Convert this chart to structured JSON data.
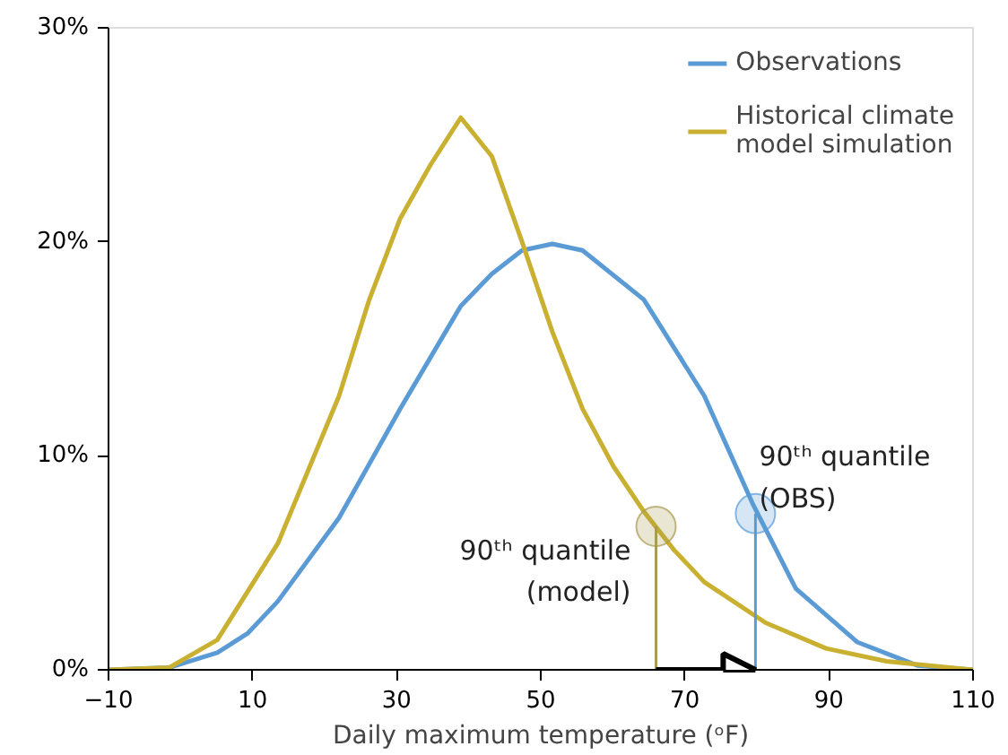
{
  "chart_data": {
    "type": "line",
    "xlabel": "Daily maximum temperature (ᵒF)",
    "x": [
      -10,
      -1.6,
      5.1,
      9.3,
      13.5,
      22,
      26.2,
      30.5,
      34.7,
      38.9,
      43.2,
      47.4,
      51.6,
      55.8,
      60.1,
      64.3,
      68.5,
      72.7,
      79.5,
      81.2,
      85.4,
      89.6,
      93.9,
      98,
      102.3,
      110
    ],
    "series": [
      {
        "name": "Observations",
        "color": "#5b9bd5",
        "values": [
          0,
          0.1,
          0.8,
          1.7,
          3.2,
          7.1,
          null,
          12.2,
          null,
          17,
          18.5,
          19.6,
          19.9,
          19.6,
          null,
          17.3,
          null,
          12.8,
          7.7,
          null,
          3.8,
          null,
          1.3,
          null,
          0.2,
          0
        ]
      },
      {
        "name": "Historical climate\nmodel simulation",
        "color": "#c9b030",
        "values": [
          0,
          0.1,
          1.4,
          null,
          5.9,
          12.8,
          17.3,
          21.1,
          23.6,
          25.8,
          24,
          20,
          15.8,
          12.2,
          9.5,
          7.4,
          5.6,
          4.1,
          null,
          2.2,
          null,
          1,
          null,
          0.4,
          null,
          0
        ]
      },
      {
        "type": "lollipop",
        "color": "#a89a50",
        "x": [
          66
        ],
        "values": [
          6.7
        ]
      },
      {
        "type": "lollipop",
        "color": "#5b9bd5",
        "x": [
          79.8
        ],
        "values": [
          7.3
        ]
      }
    ],
    "annotations": [
      {
        "text": "90ᵗʰ quantile\n(model)",
        "x": 66,
        "y": 6.7
      },
      {
        "text": "90ᵗʰ quantile\n(OBS)",
        "x": 79.8,
        "y": 7.3
      }
    ],
    "xlim": [
      -10,
      110
    ],
    "xticks": [
      -10,
      10,
      30,
      50,
      70,
      90,
      110
    ],
    "ylim": [
      0,
      30
    ],
    "yticks": [
      {
        "value": 0,
        "label": "0%"
      },
      {
        "value": 10,
        "label": "10%"
      },
      {
        "value": 20,
        "label": "20%"
      },
      {
        "value": 30,
        "label": "30%"
      }
    ],
    "legend": "top right",
    "grid": false
  }
}
